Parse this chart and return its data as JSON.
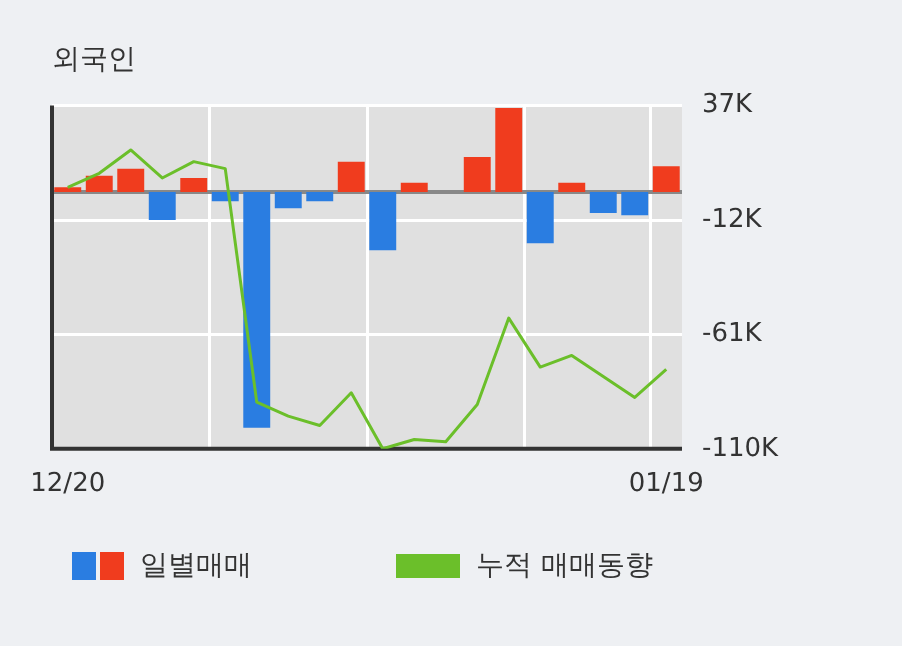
{
  "chart_data": {
    "type": "bar",
    "title": "외국인",
    "categories": [
      "12/20",
      null,
      null,
      null,
      null,
      null,
      null,
      null,
      null,
      null,
      null,
      null,
      null,
      null,
      null,
      null,
      null,
      null,
      null,
      "01/19"
    ],
    "series": [
      {
        "name": "일별매매",
        "colors": [
          "#f03c1e",
          "#f03c1e",
          "#f03c1e",
          "#2a7de1",
          "#f03c1e",
          "#2a7de1",
          "#2a7de1",
          "#2a7de1",
          "#2a7de1",
          "#f03c1e",
          "#2a7de1",
          "#f03c1e",
          "#f03c1e",
          "#f03c1e",
          "#f03c1e",
          "#2a7de1",
          "#f03c1e",
          "#2a7de1",
          "#2a7de1",
          "#f03c1e"
        ],
        "values": [
          2,
          7,
          10,
          -12,
          6,
          -4,
          -101,
          -7,
          -4,
          13,
          -25,
          4,
          0,
          15,
          36,
          -22,
          4,
          -9,
          -10,
          11
        ]
      },
      {
        "name": "누적 매매동향",
        "type": "line",
        "color": "#6bbf2a",
        "values": [
          2,
          8,
          18,
          6,
          13,
          10,
          -90,
          -96,
          -100,
          -86,
          -110,
          -106,
          -107,
          -91,
          -54,
          -75,
          -70,
          -79,
          -88,
          -76
        ]
      }
    ],
    "ylim": [
      -110,
      37
    ],
    "yticks": [
      {
        "value": 37,
        "label": "37K"
      },
      {
        "value": -12,
        "label": "-12K"
      },
      {
        "value": -61,
        "label": "-61K"
      },
      {
        "value": -110,
        "label": "-110K"
      }
    ],
    "ref_lines": [
      {
        "axis": "y",
        "value": 0,
        "color": "#888888"
      }
    ],
    "grid": true,
    "legend": "bottom",
    "marker": "none",
    "line_style": "solid"
  }
}
